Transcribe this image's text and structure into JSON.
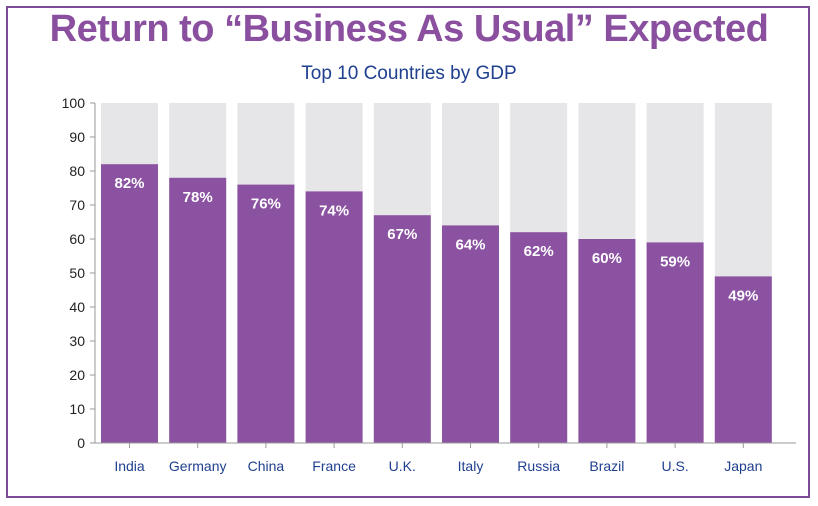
{
  "chart_data": {
    "type": "bar",
    "title": "Return to “Business As Usual” Expected",
    "subtitle": "Top 10 Countries by GDP",
    "xlabel": "",
    "ylabel": "",
    "categories": [
      "India",
      "Germany",
      "China",
      "France",
      "U.K.",
      "Italy",
      "Russia",
      "Brazil",
      "U.S.",
      "Japan"
    ],
    "values": [
      82,
      78,
      76,
      74,
      67,
      64,
      62,
      60,
      59,
      49
    ],
    "value_labels": [
      "82%",
      "78%",
      "76%",
      "74%",
      "67%",
      "64%",
      "62%",
      "60%",
      "59%",
      "49%"
    ],
    "ylim": [
      0,
      100
    ],
    "yticks": [
      0,
      10,
      20,
      30,
      40,
      50,
      60,
      70,
      80,
      90,
      100
    ],
    "grid": false,
    "legend": "none",
    "colors": {
      "bar": "#8b52a1",
      "bar_background": "#e6e6e8",
      "title": "#8a4f9f",
      "subtitle": "#1f3f8f",
      "category_labels": "#1f3f8f",
      "frame": "#7d4c98",
      "axis": "#999999"
    }
  }
}
